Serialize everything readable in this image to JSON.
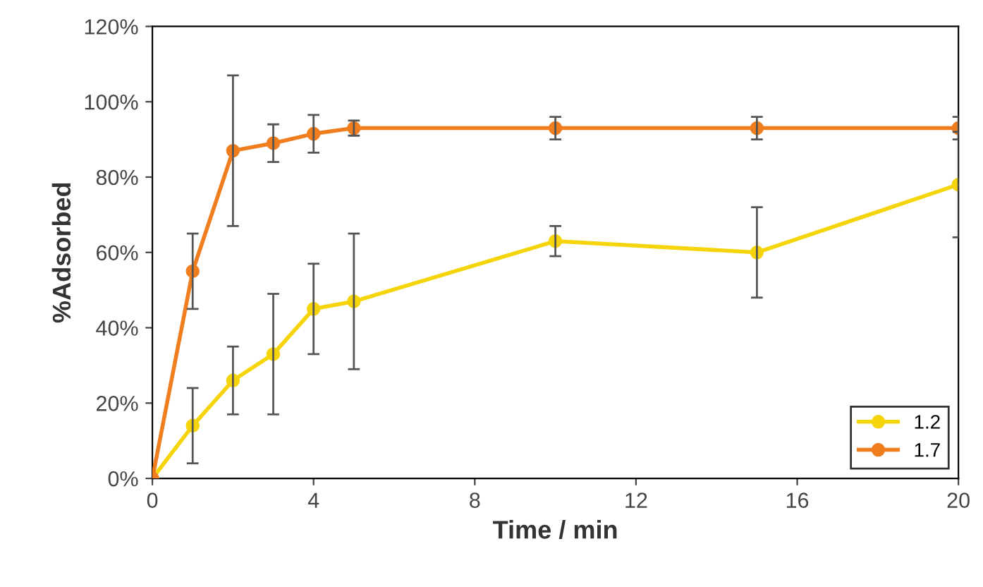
{
  "chart_data": {
    "type": "line",
    "xlabel": "Time / min",
    "ylabel": "%Adsorbed",
    "x": [
      0,
      1,
      2,
      3,
      4,
      5,
      10,
      15,
      20
    ],
    "series": [
      {
        "name": "1.2",
        "color": "#f5d50a",
        "values": [
          0,
          14,
          26,
          33,
          45,
          47,
          63,
          60,
          78
        ],
        "errors": [
          null,
          10,
          9,
          16,
          12,
          18,
          4,
          12,
          14
        ]
      },
      {
        "name": "1.7",
        "color": "#f07d1e",
        "values": [
          0,
          55,
          87,
          89,
          91.5,
          93,
          93,
          93,
          93
        ],
        "errors": [
          null,
          10,
          20,
          5,
          5,
          2,
          3,
          3,
          3
        ]
      }
    ],
    "xlim": [
      0,
      20
    ],
    "xticks": [
      0,
      4,
      8,
      12,
      16,
      20
    ],
    "ylim": [
      0,
      120
    ],
    "yticks": [
      {
        "value": 0,
        "label": "0%"
      },
      {
        "value": 20,
        "label": "20%"
      },
      {
        "value": 40,
        "label": "40%"
      },
      {
        "value": 60,
        "label": "60%"
      },
      {
        "value": 80,
        "label": "80%"
      },
      {
        "value": 100,
        "label": "100%"
      },
      {
        "value": 120,
        "label": "120%"
      }
    ],
    "marker": "circle",
    "line_style": "solid",
    "legend": "bottom right",
    "grid": false
  }
}
